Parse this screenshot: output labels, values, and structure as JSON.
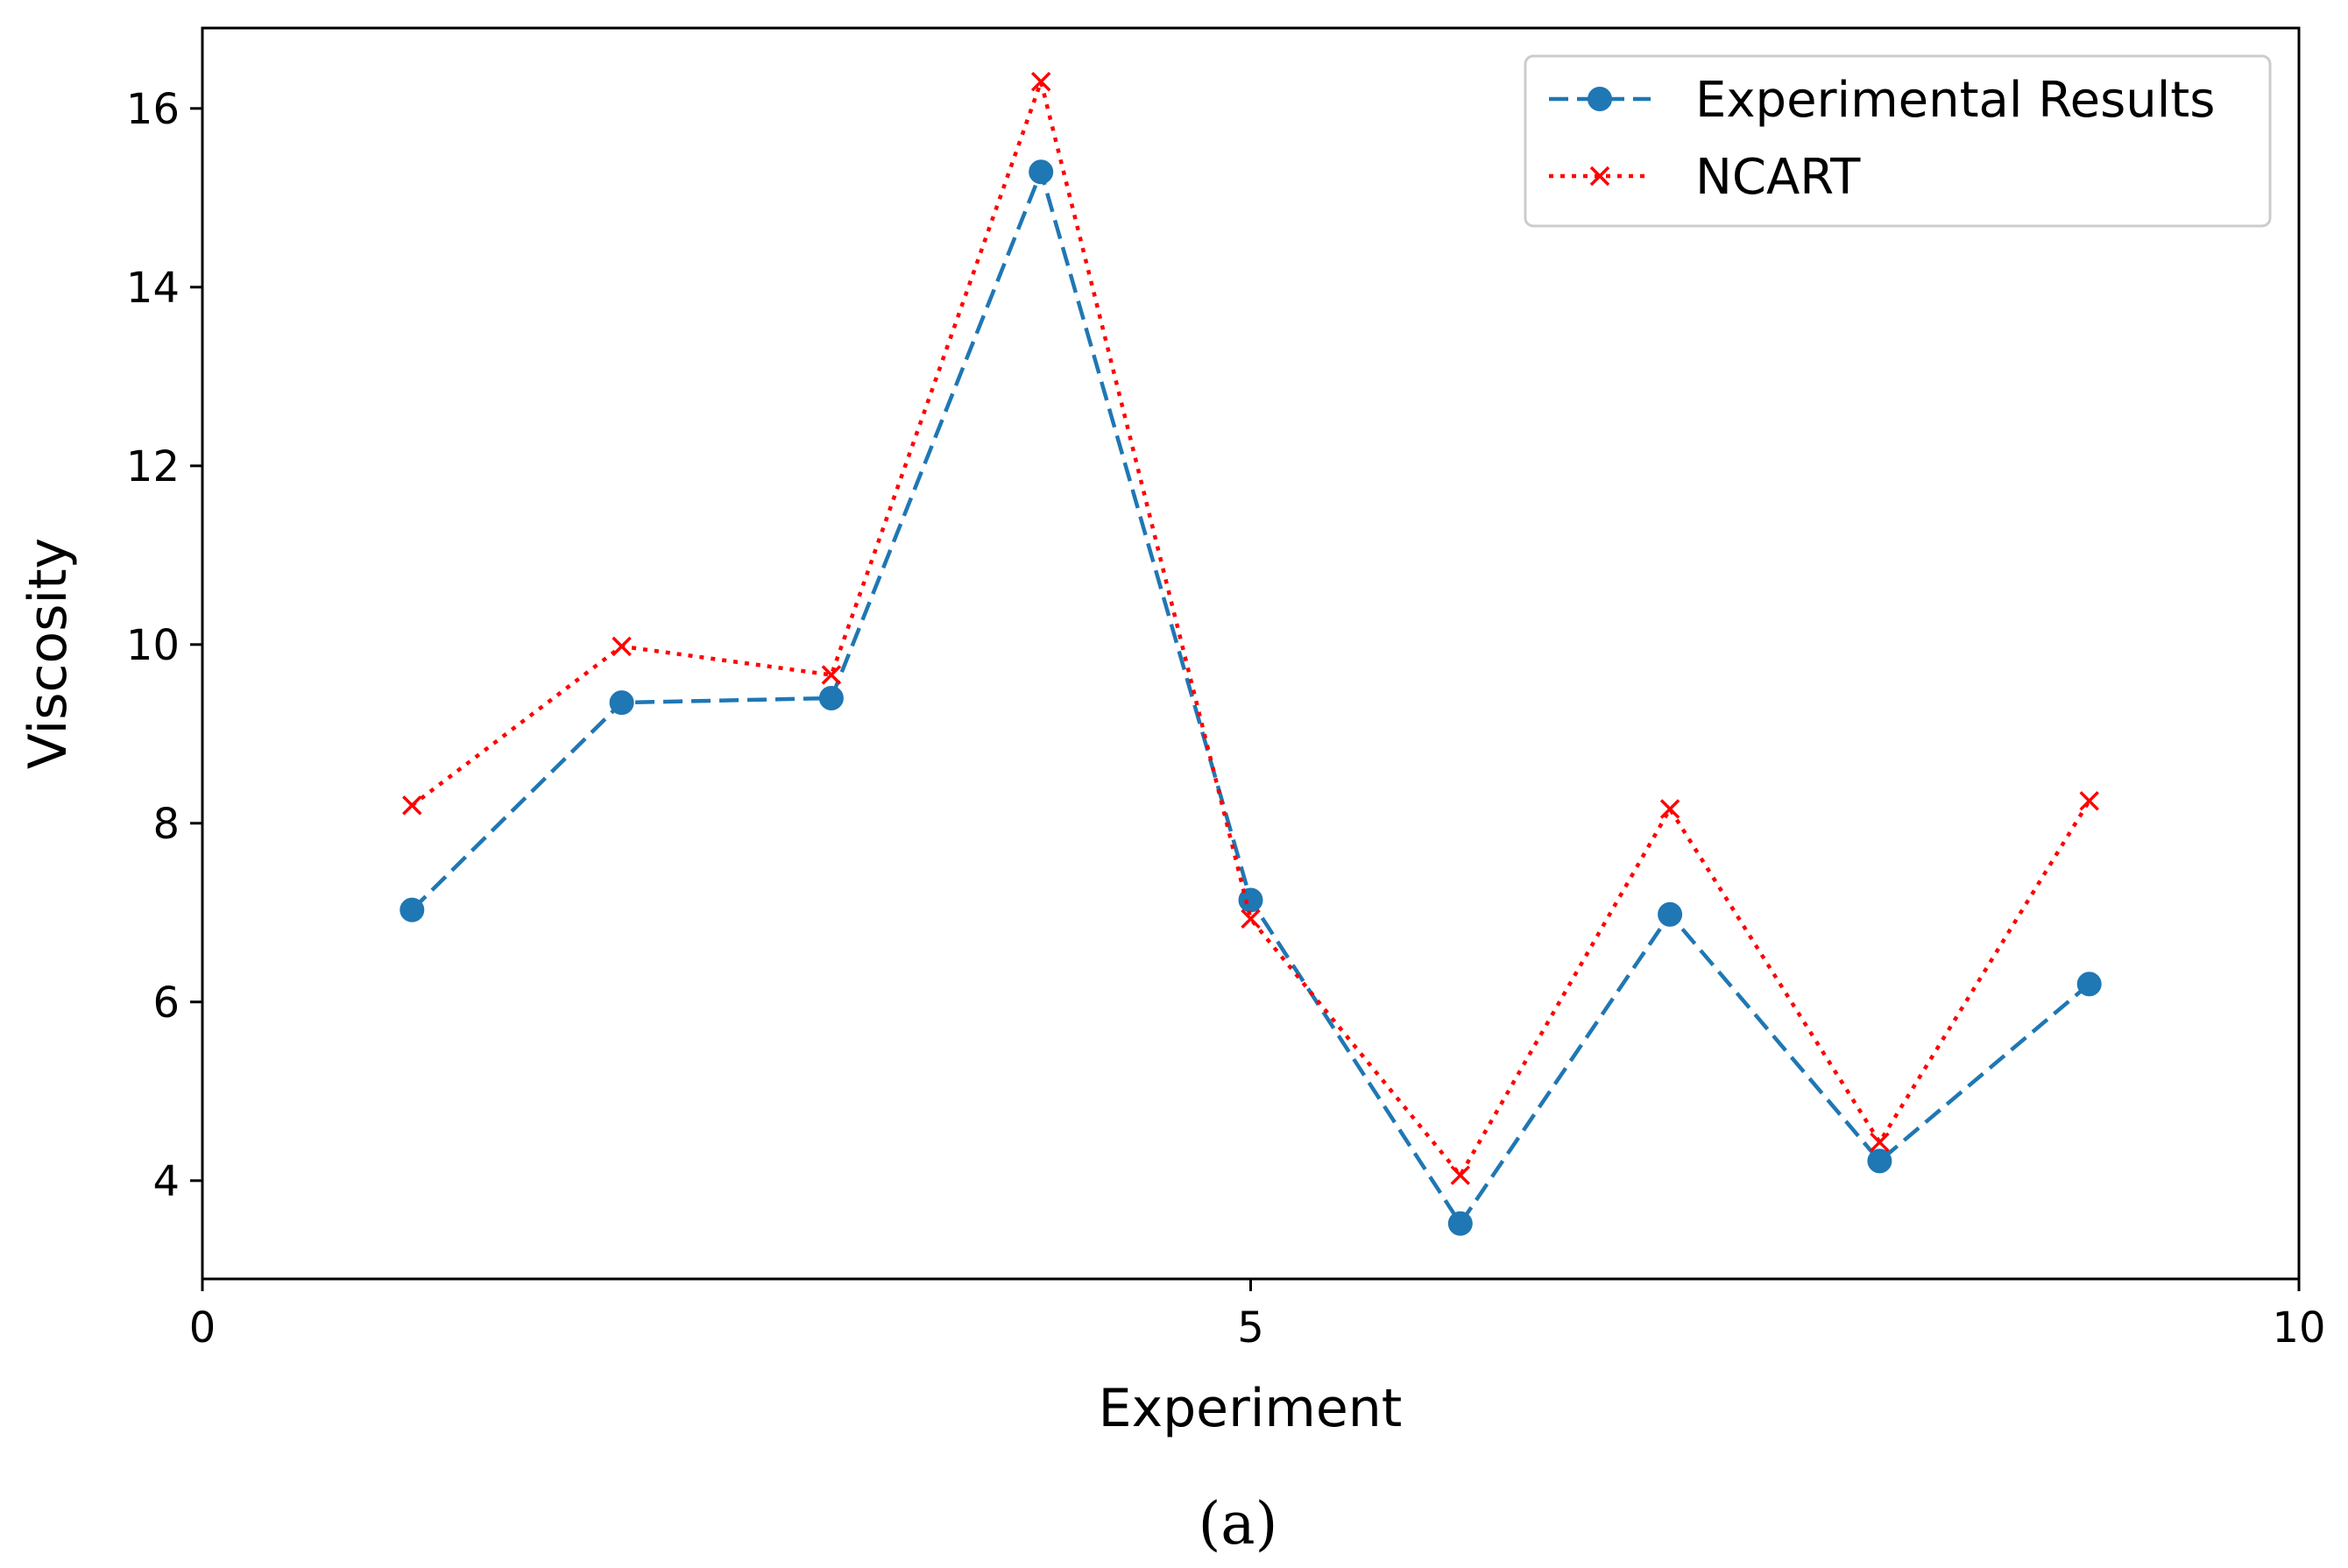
{
  "chart_data": {
    "type": "line",
    "title": "",
    "xlabel": "Experiment",
    "ylabel": "Viscosity",
    "xlim": [
      0,
      10
    ],
    "ylim": [
      2.9,
      16.9
    ],
    "xticks": [
      0,
      5,
      10
    ],
    "yticks": [
      4,
      6,
      8,
      10,
      12,
      14,
      16
    ],
    "grid": false,
    "legend_position": "top-right",
    "series": [
      {
        "name": "Experimental Results",
        "color": "#1f77b4",
        "line_style": "dashed",
        "marker": "circle",
        "x": [
          1,
          2,
          3,
          4,
          5,
          6,
          7,
          8,
          9
        ],
        "values": [
          7.03,
          9.35,
          9.4,
          15.29,
          7.14,
          3.52,
          6.98,
          4.22,
          6.2
        ]
      },
      {
        "name": "NCART",
        "color": "#ff0000",
        "line_style": "dotted",
        "marker": "x",
        "x": [
          1,
          2,
          3,
          4,
          5,
          6,
          7,
          8,
          9
        ],
        "values": [
          8.2,
          9.98,
          9.66,
          16.3,
          6.93,
          4.06,
          8.16,
          4.43,
          8.25
        ]
      }
    ],
    "caption": "(a)"
  }
}
